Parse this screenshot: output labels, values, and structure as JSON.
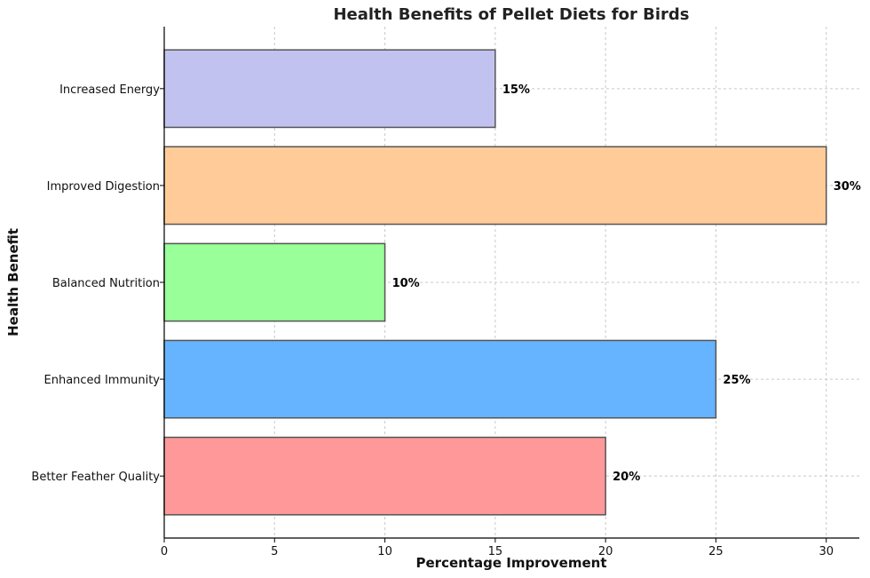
{
  "chart_data": {
    "type": "bar",
    "orientation": "horizontal",
    "title": "Health Benefits of Pellet Diets for Birds",
    "xlabel": "Percentage Improvement",
    "ylabel": "Health Benefit",
    "categories": [
      "Better Feather Quality",
      "Enhanced Immunity",
      "Balanced Nutrition",
      "Improved Digestion",
      "Increased Energy"
    ],
    "values": [
      20,
      25,
      10,
      30,
      15
    ],
    "value_labels": [
      "20%",
      "25%",
      "10%",
      "30%",
      "15%"
    ],
    "colors": [
      "#ff9999",
      "#66b3ff",
      "#99ff99",
      "#ffcc99",
      "#c2c2f0"
    ],
    "xlim": [
      0,
      31.5
    ],
    "xticks": [
      0,
      5,
      10,
      15,
      20,
      25,
      30
    ],
    "grid": true
  }
}
